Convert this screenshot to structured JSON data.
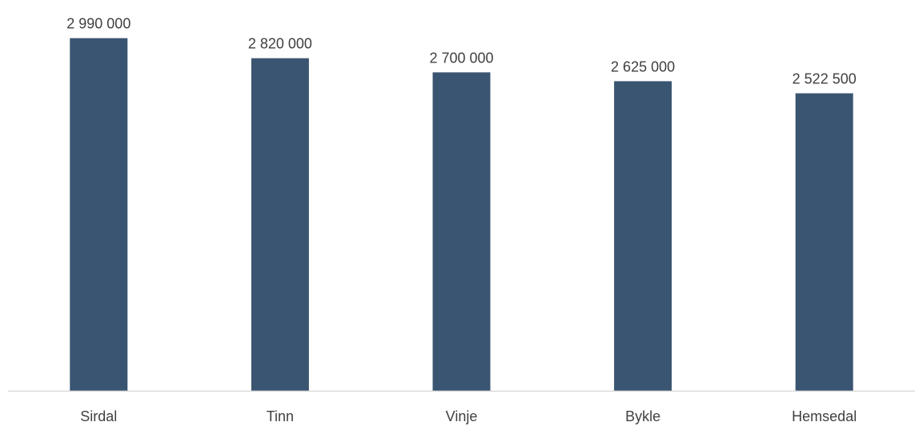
{
  "colors": {
    "bar": "#3a5571",
    "axis": "#d9d9d9",
    "text": "#404040",
    "background": "#ffffff"
  },
  "chart_data": {
    "type": "bar",
    "categories": [
      "Sirdal",
      "Tinn",
      "Vinje",
      "Bykle",
      "Hemsedal"
    ],
    "values": [
      2990000,
      2820000,
      2700000,
      2625000,
      2522500
    ],
    "data_labels": [
      "2 990 000",
      "2 820 000",
      "2 700 000",
      "2 625 000",
      "2 522 500"
    ],
    "title": "",
    "xlabel": "",
    "ylabel": "",
    "ylim": [
      0,
      3300000
    ],
    "grid": false,
    "legend": "none",
    "y_axis_visible": false
  }
}
